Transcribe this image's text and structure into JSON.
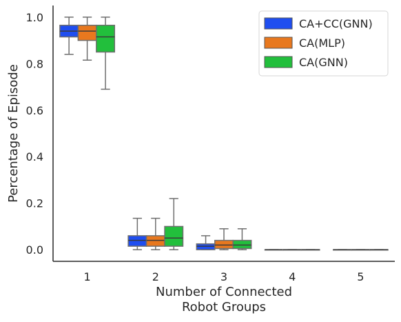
{
  "chart_data": {
    "type": "box",
    "xlabel": [
      "Number of Connected",
      "Robot Groups"
    ],
    "ylabel": "Percentage of Episode",
    "categories": [
      "1",
      "2",
      "3",
      "4",
      "5"
    ],
    "ylim": [
      -0.05,
      1.05
    ],
    "yticks": [
      0.0,
      0.2,
      0.4,
      0.6,
      0.8,
      1.0
    ],
    "ytick_labels": [
      "0.0",
      "0.2",
      "0.4",
      "0.6",
      "0.8",
      "1.0"
    ],
    "legend_position": "top-right",
    "grid": false,
    "series": [
      {
        "name": "CA+CC(GNN)",
        "color": "#1f4ef0",
        "boxes": [
          {
            "min": 0.84,
            "q1": 0.915,
            "median": 0.94,
            "q3": 0.965,
            "max": 1.0
          },
          {
            "min": 0.0,
            "q1": 0.015,
            "median": 0.04,
            "q3": 0.06,
            "max": 0.135
          },
          {
            "min": 0.0,
            "q1": 0.0,
            "median": 0.015,
            "q3": 0.025,
            "max": 0.06
          },
          {
            "min": 0.0,
            "q1": 0.0,
            "median": 0.0,
            "q3": 0.0,
            "max": 0.0
          },
          {
            "min": 0.0,
            "q1": 0.0,
            "median": 0.0,
            "q3": 0.0,
            "max": 0.0
          }
        ]
      },
      {
        "name": "CA(MLP)",
        "color": "#e8781e",
        "boxes": [
          {
            "min": 0.815,
            "q1": 0.9,
            "median": 0.94,
            "q3": 0.965,
            "max": 1.0
          },
          {
            "min": 0.0,
            "q1": 0.015,
            "median": 0.04,
            "q3": 0.06,
            "max": 0.135
          },
          {
            "min": 0.0,
            "q1": 0.005,
            "median": 0.02,
            "q3": 0.04,
            "max": 0.09
          },
          {
            "min": 0.0,
            "q1": 0.0,
            "median": 0.0,
            "q3": 0.0,
            "max": 0.0
          },
          {
            "min": 0.0,
            "q1": 0.0,
            "median": 0.0,
            "q3": 0.0,
            "max": 0.0
          }
        ]
      },
      {
        "name": "CA(GNN)",
        "color": "#22bf3c",
        "boxes": [
          {
            "min": 0.69,
            "q1": 0.85,
            "median": 0.915,
            "q3": 0.965,
            "max": 1.0
          },
          {
            "min": 0.0,
            "q1": 0.015,
            "median": 0.05,
            "q3": 0.1,
            "max": 0.22
          },
          {
            "min": 0.0,
            "q1": 0.005,
            "median": 0.02,
            "q3": 0.04,
            "max": 0.09
          },
          {
            "min": 0.0,
            "q1": 0.0,
            "median": 0.0,
            "q3": 0.0,
            "max": 0.0
          },
          {
            "min": 0.0,
            "q1": 0.0,
            "median": 0.0,
            "q3": 0.0,
            "max": 0.0
          }
        ]
      }
    ]
  }
}
